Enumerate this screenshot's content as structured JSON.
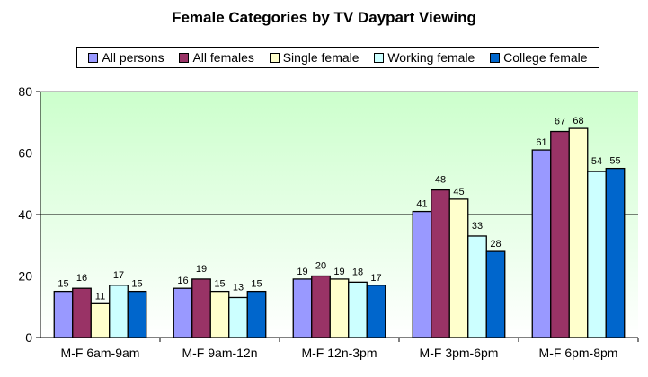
{
  "chart_data": {
    "type": "bar",
    "title": "Female Categories by TV Daypart Viewing",
    "xlabel": "",
    "ylabel": "",
    "ylim": [
      0,
      80
    ],
    "yticks": [
      0,
      20,
      40,
      60,
      80
    ],
    "grid": true,
    "legend_position": "top",
    "categories": [
      "M-F 6am-9am",
      "M-F 9am-12n",
      "M-F 12n-3pm",
      "M-F 3pm-6pm",
      "M-F 6pm-8pm"
    ],
    "series": [
      {
        "name": "All persons",
        "color": "#9999FF",
        "values": [
          15,
          16,
          19,
          41,
          61
        ]
      },
      {
        "name": "All females",
        "color": "#993366",
        "values": [
          16,
          19,
          20,
          48,
          67
        ]
      },
      {
        "name": "Single female",
        "color": "#FFFFCC",
        "values": [
          11,
          15,
          19,
          45,
          68
        ]
      },
      {
        "name": "Working female",
        "color": "#CCFFFF",
        "values": [
          17,
          13,
          18,
          33,
          54
        ]
      },
      {
        "name": "College female",
        "color": "#0066CC",
        "values": [
          15,
          15,
          17,
          28,
          55
        ]
      }
    ]
  }
}
